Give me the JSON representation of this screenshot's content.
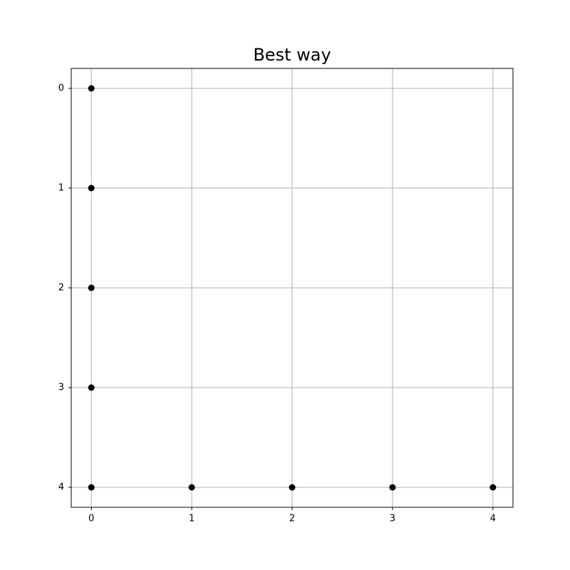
{
  "chart_data": {
    "type": "line",
    "title": "Best way",
    "x": [
      0,
      0,
      0,
      0,
      0,
      1,
      2,
      3,
      4
    ],
    "values": [
      0,
      1,
      2,
      3,
      4,
      4,
      4,
      4,
      4
    ],
    "color": "#ff0000",
    "marker_color": "#000000",
    "xlim": [
      -0.2,
      4.2
    ],
    "xticks": [
      0,
      1,
      2,
      3,
      4
    ],
    "ylim": [
      -0.2,
      4.2
    ],
    "yticks": [
      0,
      1,
      2,
      3,
      4
    ],
    "y_inverted": true,
    "grid": true
  }
}
